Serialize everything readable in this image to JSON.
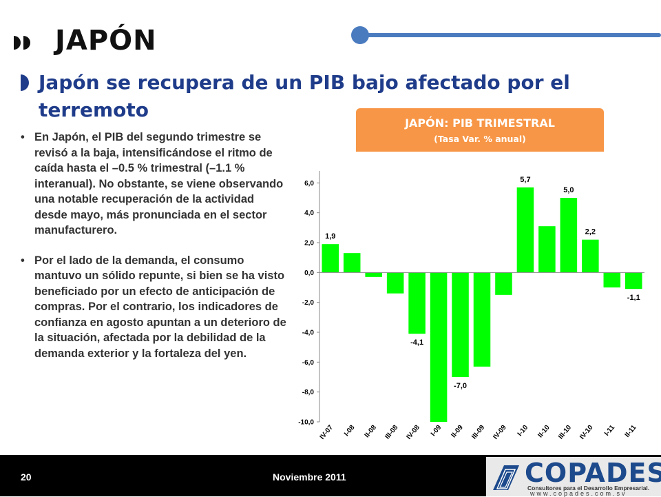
{
  "header": {
    "title": "JAPÓN"
  },
  "subtitle": "Japón se recupera de un PIB bajo afectado por el terremoto",
  "bullets": [
    "En Japón, el PIB del segundo trimestre se revisó a la baja, intensificándose el ritmo de caída hasta el –0.5 % trimestral (–1.1 % interanual). No obstante, se viene observando una  notable recuperación de la actividad desde mayo, más pronunciada en el sector manufacturero.",
    "Por el lado de la demanda, el consumo mantuvo un sólido repunte, si bien se ha visto beneficiado por un efecto de anticipación de compras. Por el contrario, los indicadores de confianza en agosto apuntan a un deterioro de la situación, afectada por la debilidad de la demanda exterior y la fortaleza del yen."
  ],
  "chart_banner": {
    "title": "JAPÓN: PIB TRIMESTRAL",
    "subtitle": "(Tasa Var. % anual)"
  },
  "chart_data": {
    "type": "bar",
    "title": "JAPÓN: PIB TRIMESTRAL",
    "subtitle": "(Tasa Var. % anual)",
    "categories": [
      "IV-07",
      "I-08",
      "II-08",
      "III-08",
      "IV-08",
      "I-09",
      "II-09",
      "III-09",
      "IV-09",
      "I-10",
      "II-10",
      "III-10",
      "IV-10",
      "I-11",
      "II-11"
    ],
    "values": [
      1.9,
      1.3,
      -0.3,
      -1.4,
      -4.1,
      -10.0,
      -7.0,
      -6.3,
      -1.5,
      5.7,
      3.1,
      5.0,
      2.2,
      -1.0,
      -1.1
    ],
    "data_labels": {
      "0": "1,9",
      "4": "-4,1",
      "6": "-7,0",
      "9": "5,7",
      "11": "5,0",
      "12": "2,2",
      "14": "-1,1"
    },
    "yticks": [
      "6,0",
      "4,0",
      "2,0",
      "0,0",
      "-2,0",
      "-4,0",
      "-6,0",
      "-8,0",
      "-10,0"
    ],
    "ylim": [
      -10,
      6.8
    ],
    "bar_color": "#00ff00",
    "grid": false
  },
  "footer": {
    "page": "20",
    "date": "Noviembre 2011"
  },
  "logo": {
    "name": "COPADES",
    "tagline": "Consultores para el Desarrollo Empresarial.",
    "url": "www.copades.com.sv"
  },
  "colors": {
    "accent": "#1f3c8a",
    "banner": "#f79646",
    "line": "#4a7bbf"
  }
}
